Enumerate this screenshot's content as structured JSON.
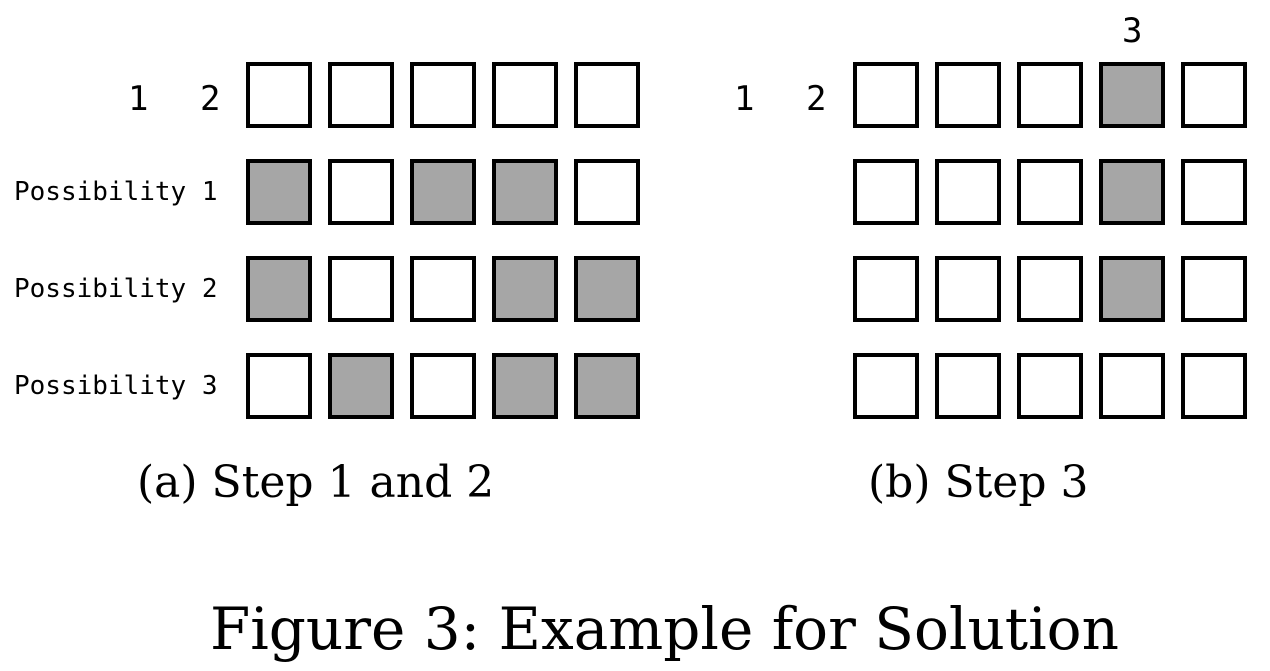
{
  "panels": [
    {
      "caption": "(a) Step 1 and 2",
      "clues": [
        "1",
        "2"
      ],
      "top_clue": "",
      "row_labels": [
        "",
        "Possibility 1",
        "Possibility 2",
        "Possibility 3"
      ],
      "grid": [
        [
          0,
          0,
          0,
          0,
          0
        ],
        [
          1,
          0,
          1,
          1,
          0
        ],
        [
          1,
          0,
          0,
          1,
          1
        ],
        [
          0,
          1,
          0,
          1,
          1
        ]
      ]
    },
    {
      "caption": "(b) Step 3",
      "clues": [
        "1",
        "2"
      ],
      "top_clue": "3",
      "row_labels": [
        "",
        "",
        "",
        ""
      ],
      "grid": [
        [
          0,
          0,
          0,
          1,
          0
        ],
        [
          0,
          0,
          0,
          1,
          0
        ],
        [
          0,
          0,
          0,
          1,
          0
        ],
        [
          0,
          0,
          0,
          0,
          0
        ]
      ]
    }
  ],
  "figure_caption": "Figure 3: Example for Solution",
  "colors": {
    "filled": "#a6a6a6",
    "empty": "#ffffff",
    "border": "#000000"
  }
}
